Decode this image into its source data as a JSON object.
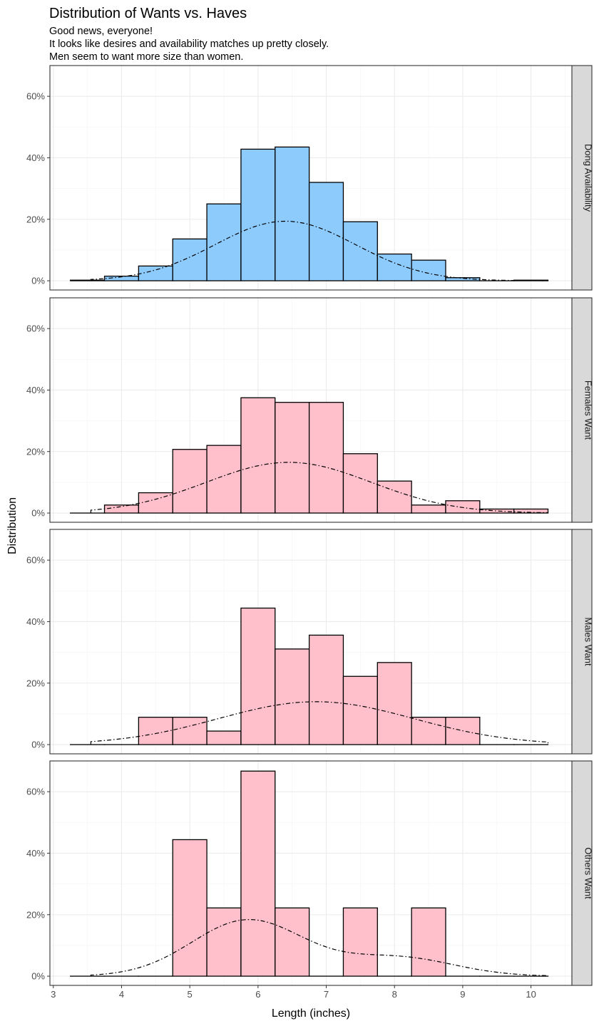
{
  "chart_data": {
    "type": "bar",
    "title": "Distribution of Wants vs. Haves",
    "subtitle_lines": [
      "Good news, everyone!",
      "It looks like desires and availability matches up pretty closely.",
      "Men seem to want more size than women."
    ],
    "xlabel": "Length (inches)",
    "ylabel": "Distribution",
    "xlim": [
      2.95,
      10.6
    ],
    "ylim": [
      -0.03,
      0.7
    ],
    "x_ticks": [
      3,
      4,
      5,
      6,
      7,
      8,
      9,
      10
    ],
    "x_tick_labels": [
      "3",
      "4",
      "5",
      "6",
      "7",
      "8",
      "9",
      "10"
    ],
    "y_ticks": [
      0,
      0.2,
      0.4,
      0.6
    ],
    "y_tick_labels": [
      "0%",
      "20%",
      "40%",
      "60%"
    ],
    "bin_width": 0.5,
    "bin_centers": [
      3.5,
      4.0,
      4.5,
      5.0,
      5.5,
      6.0,
      6.5,
      7.0,
      7.5,
      8.0,
      8.5,
      9.0,
      9.5,
      10.0
    ],
    "density_x_range": [
      3.55,
      10.25
    ],
    "grid": true,
    "legend": "none",
    "panels": [
      {
        "strip": "Dong Availability",
        "fill_color": "#8ecbfd",
        "values": [
          0.002,
          0.015,
          0.048,
          0.136,
          0.25,
          0.428,
          0.435,
          0.32,
          0.192,
          0.087,
          0.067,
          0.01,
          0.0,
          0.002
        ],
        "density_components": [
          {
            "weight": 1.0,
            "mean": 6.4,
            "sd": 1.03
          }
        ]
      },
      {
        "strip": "Females Want",
        "fill_color": "#ffc0cb",
        "values": [
          0.0,
          0.026,
          0.066,
          0.207,
          0.22,
          0.375,
          0.36,
          0.36,
          0.193,
          0.104,
          0.026,
          0.04,
          0.013,
          0.013
        ],
        "density_components": [
          {
            "weight": 1.0,
            "mean": 6.45,
            "sd": 1.21
          }
        ]
      },
      {
        "strip": "Males Want",
        "fill_color": "#ffc0cb",
        "values": [
          0.0,
          0.0,
          0.089,
          0.089,
          0.044,
          0.444,
          0.311,
          0.356,
          0.222,
          0.267,
          0.089,
          0.089,
          0.0,
          0.0
        ],
        "density_components": [
          {
            "weight": 1.0,
            "mean": 6.85,
            "sd": 1.43
          }
        ]
      },
      {
        "strip": "Others Want",
        "fill_color": "#ffc0cb",
        "values": [
          0.0,
          0.0,
          0.0,
          0.444,
          0.222,
          0.667,
          0.222,
          0.0,
          0.222,
          0.0,
          0.222,
          0.0,
          0.0,
          0.0
        ],
        "density_components": [
          {
            "weight": 0.75,
            "mean": 5.85,
            "sd": 0.82
          },
          {
            "weight": 0.25,
            "mean": 8.05,
            "sd": 0.82
          }
        ]
      }
    ],
    "colors": {
      "bar_stroke": "#000000",
      "panel_border": "#333333",
      "grid_major": "#ebebeb",
      "grid_minor": "#f5f5f5",
      "strip_fill": "#d9d9d9",
      "density_line": "#000000"
    }
  }
}
